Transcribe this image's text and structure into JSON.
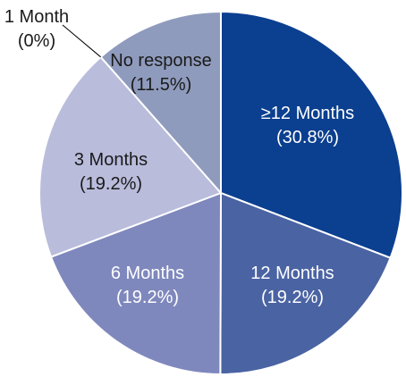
{
  "chart_data": {
    "type": "pie",
    "title": "",
    "slices": [
      {
        "label": "≥12 Months",
        "value_text": "(30.8%)",
        "value": 30.8,
        "color": "#0b3f8f",
        "text_color": "#ffffff"
      },
      {
        "label": "12 Months",
        "value_text": "(19.2%)",
        "value": 19.2,
        "color": "#4a63a3",
        "text_color": "#ffffff"
      },
      {
        "label": "6 Months",
        "value_text": "(19.2%)",
        "value": 19.2,
        "color": "#7f88bd",
        "text_color": "#ffffff"
      },
      {
        "label": "3 Months",
        "value_text": "(19.2%)",
        "value": 19.2,
        "color": "#b9bcdb",
        "text_color": "#1a1a1a"
      },
      {
        "label": "1 Month",
        "value_text": "(0%)",
        "value": 0,
        "color": "#000000",
        "text_color": "#1a1a1a"
      },
      {
        "label": "No response",
        "value_text": "(11.5%)",
        "value": 11.5,
        "color": "#8f9bbd",
        "text_color": "#1a1a1a"
      }
    ]
  }
}
